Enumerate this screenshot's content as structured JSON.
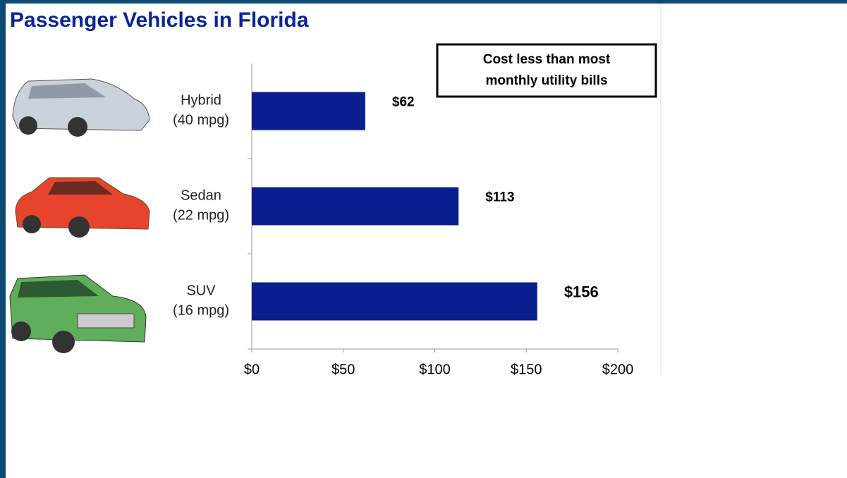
{
  "chart_data": {
    "type": "bar",
    "orientation": "horizontal",
    "title": "Passenger Vehicles in Florida",
    "annotation": "Cost less than most\nmonthly utility bills",
    "categories": [
      "Hybrid\n(40 mpg)",
      "Sedan\n(22 mpg)",
      "SUV\n(16 mpg)"
    ],
    "values": [
      62,
      113,
      156
    ],
    "value_labels": [
      "$62",
      "$113",
      "$156"
    ],
    "color": "#0a1f8f",
    "xlim": [
      0,
      200
    ],
    "xticks": [
      {
        "value": 0,
        "label": "$0"
      },
      {
        "value": 50,
        "label": "$50"
      },
      {
        "value": 100,
        "label": "$100"
      },
      {
        "value": 150,
        "label": "$150"
      },
      {
        "value": 200,
        "label": "$200"
      }
    ]
  }
}
